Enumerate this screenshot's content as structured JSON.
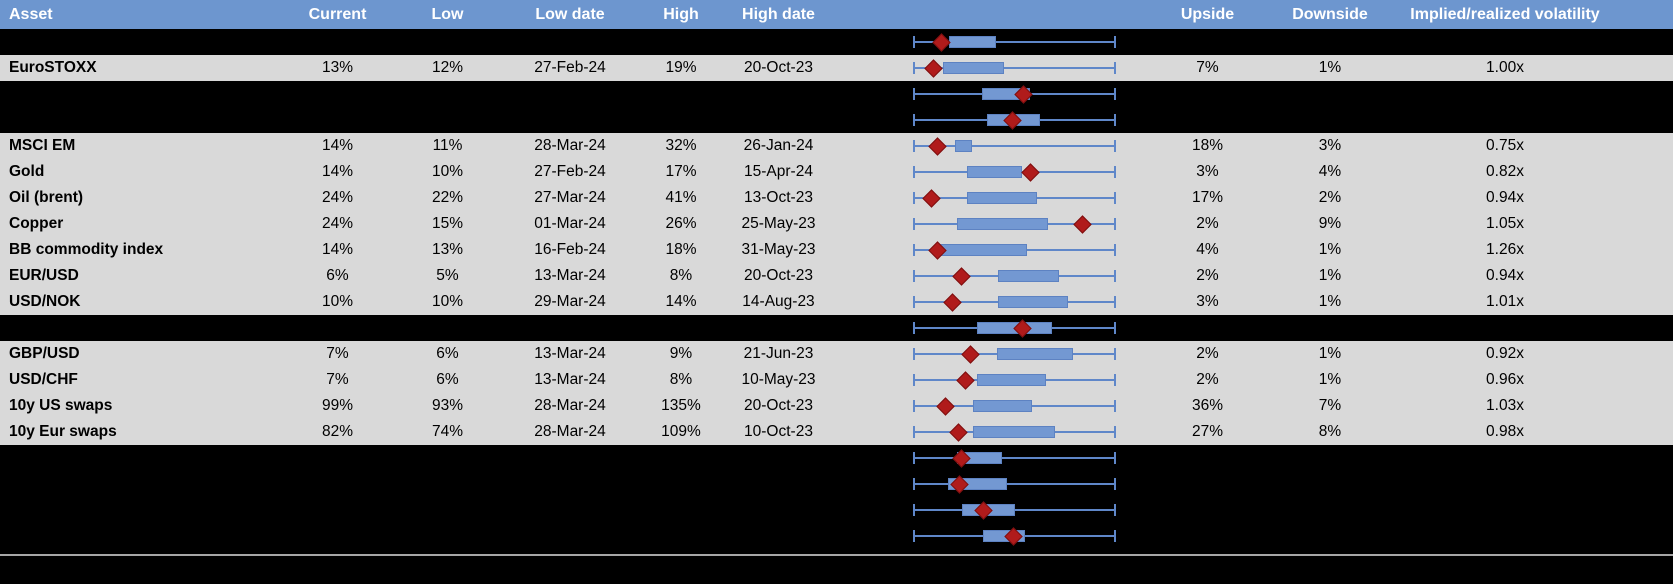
{
  "header": {
    "columns": [
      "Asset",
      "Current",
      "Low",
      "Low date",
      "High",
      "High date",
      "Upside",
      "Downside",
      "Implied/realized volatility"
    ]
  },
  "colors": {
    "header_bg": "#6d96cf",
    "header_text": "#ffffff",
    "row_bg": "#d9d9d9",
    "page_bg": "#000000",
    "box_fill": "#7398d2",
    "box_border": "#5d82c2",
    "whisker": "#5f87c9",
    "marker": "#b01b1b",
    "divider": "#a6a6a6"
  },
  "chart_note": "Each row chart: whisker spans the row's low-high range (0 to 1); box_start/box_end and marker are fractions of that range; marker is the red diamond (current level).",
  "table": {
    "rows": [
      {
        "type": "spacer",
        "plot": {
          "box_start": 0.177,
          "box_end": 0.409,
          "marker": 0.138
        }
      },
      {
        "type": "data",
        "asset": "EuroSTOXX",
        "current": "13%",
        "low": "12%",
        "low_date": "27-Feb-24",
        "high": "19%",
        "high_date": "20-Oct-23",
        "upside": "7%",
        "downside": "1%",
        "impl_real": "1.00x",
        "plot": {
          "box_start": 0.148,
          "box_end": 0.448,
          "marker": 0.099
        }
      },
      {
        "type": "spacer",
        "plot": {
          "box_start": 0.34,
          "box_end": 0.576,
          "marker": 0.542
        }
      },
      {
        "type": "spacer",
        "plot": {
          "box_start": 0.365,
          "box_end": 0.626,
          "marker": 0.488
        }
      },
      {
        "type": "data",
        "asset": "MSCI EM",
        "current": "14%",
        "low": "11%",
        "low_date": "28-Mar-24",
        "high": "32%",
        "high_date": "26-Jan-24",
        "upside": "18%",
        "downside": "3%",
        "impl_real": "0.75x",
        "plot": {
          "box_start": 0.207,
          "box_end": 0.291,
          "marker": 0.118
        }
      },
      {
        "type": "data",
        "asset": "Gold",
        "current": "14%",
        "low": "10%",
        "low_date": "27-Feb-24",
        "high": "17%",
        "high_date": "15-Apr-24",
        "upside": "3%",
        "downside": "4%",
        "impl_real": "0.82x",
        "plot": {
          "box_start": 0.266,
          "box_end": 0.537,
          "marker": 0.581
        }
      },
      {
        "type": "data",
        "asset": "Oil (brent)",
        "current": "24%",
        "low": "22%",
        "low_date": "27-Mar-24",
        "high": "41%",
        "high_date": "13-Oct-23",
        "upside": "17%",
        "downside": "2%",
        "impl_real": "0.94x",
        "plot": {
          "box_start": 0.266,
          "box_end": 0.611,
          "marker": 0.089
        }
      },
      {
        "type": "data",
        "asset": "Copper",
        "current": "24%",
        "low": "15%",
        "low_date": "01-Mar-24",
        "high": "26%",
        "high_date": "25-May-23",
        "upside": "2%",
        "downside": "9%",
        "impl_real": "1.05x",
        "plot": {
          "box_start": 0.217,
          "box_end": 0.665,
          "marker": 0.833
        }
      },
      {
        "type": "data",
        "asset": "BB commodity index",
        "current": "14%",
        "low": "13%",
        "low_date": "16-Feb-24",
        "high": "18%",
        "high_date": "31-May-23",
        "upside": "4%",
        "downside": "1%",
        "impl_real": "1.26x",
        "plot": {
          "box_start": 0.133,
          "box_end": 0.562,
          "marker": 0.118
        }
      },
      {
        "type": "data",
        "asset": "EUR/USD",
        "current": "6%",
        "low": "5%",
        "low_date": "13-Mar-24",
        "high": "8%",
        "high_date": "20-Oct-23",
        "upside": "2%",
        "downside": "1%",
        "impl_real": "0.94x",
        "plot": {
          "box_start": 0.419,
          "box_end": 0.719,
          "marker": 0.241
        }
      },
      {
        "type": "data",
        "asset": "USD/NOK",
        "current": "10%",
        "low": "10%",
        "low_date": "29-Mar-24",
        "high": "14%",
        "high_date": "14-Aug-23",
        "upside": "3%",
        "downside": "1%",
        "impl_real": "1.01x",
        "plot": {
          "box_start": 0.419,
          "box_end": 0.764,
          "marker": 0.192
        }
      },
      {
        "type": "spacer",
        "plot": {
          "box_start": 0.315,
          "box_end": 0.685,
          "marker": 0.537
        }
      },
      {
        "type": "data",
        "asset": "GBP/USD",
        "current": "7%",
        "low": "6%",
        "low_date": "13-Mar-24",
        "high": "9%",
        "high_date": "21-Jun-23",
        "upside": "2%",
        "downside": "1%",
        "impl_real": "0.92x",
        "plot": {
          "box_start": 0.414,
          "box_end": 0.788,
          "marker": 0.281
        }
      },
      {
        "type": "data",
        "asset": "USD/CHF",
        "current": "7%",
        "low": "6%",
        "low_date": "13-Mar-24",
        "high": "8%",
        "high_date": "10-May-23",
        "upside": "2%",
        "downside": "1%",
        "impl_real": "0.96x",
        "plot": {
          "box_start": 0.315,
          "box_end": 0.655,
          "marker": 0.256
        }
      },
      {
        "type": "data",
        "asset": "10y US swaps",
        "current": "99%",
        "low": "93%",
        "low_date": "28-Mar-24",
        "high": "135%",
        "high_date": "20-Oct-23",
        "upside": "36%",
        "downside": "7%",
        "impl_real": "1.03x",
        "plot": {
          "box_start": 0.296,
          "box_end": 0.586,
          "marker": 0.158
        }
      },
      {
        "type": "data",
        "asset": "10y Eur swaps",
        "current": "82%",
        "low": "74%",
        "low_date": "28-Mar-24",
        "high": "109%",
        "high_date": "10-Oct-23",
        "upside": "27%",
        "downside": "8%",
        "impl_real": "0.98x",
        "plot": {
          "box_start": 0.296,
          "box_end": 0.7,
          "marker": 0.222
        }
      },
      {
        "type": "spacer",
        "plot": {
          "box_start": 0.217,
          "box_end": 0.438,
          "marker": 0.241
        }
      },
      {
        "type": "spacer",
        "plot": {
          "box_start": 0.172,
          "box_end": 0.463,
          "marker": 0.227
        }
      },
      {
        "type": "spacer",
        "plot": {
          "box_start": 0.241,
          "box_end": 0.502,
          "marker": 0.345
        }
      },
      {
        "type": "spacer",
        "plot": {
          "box_start": 0.345,
          "box_end": 0.552,
          "marker": 0.493
        }
      }
    ]
  }
}
